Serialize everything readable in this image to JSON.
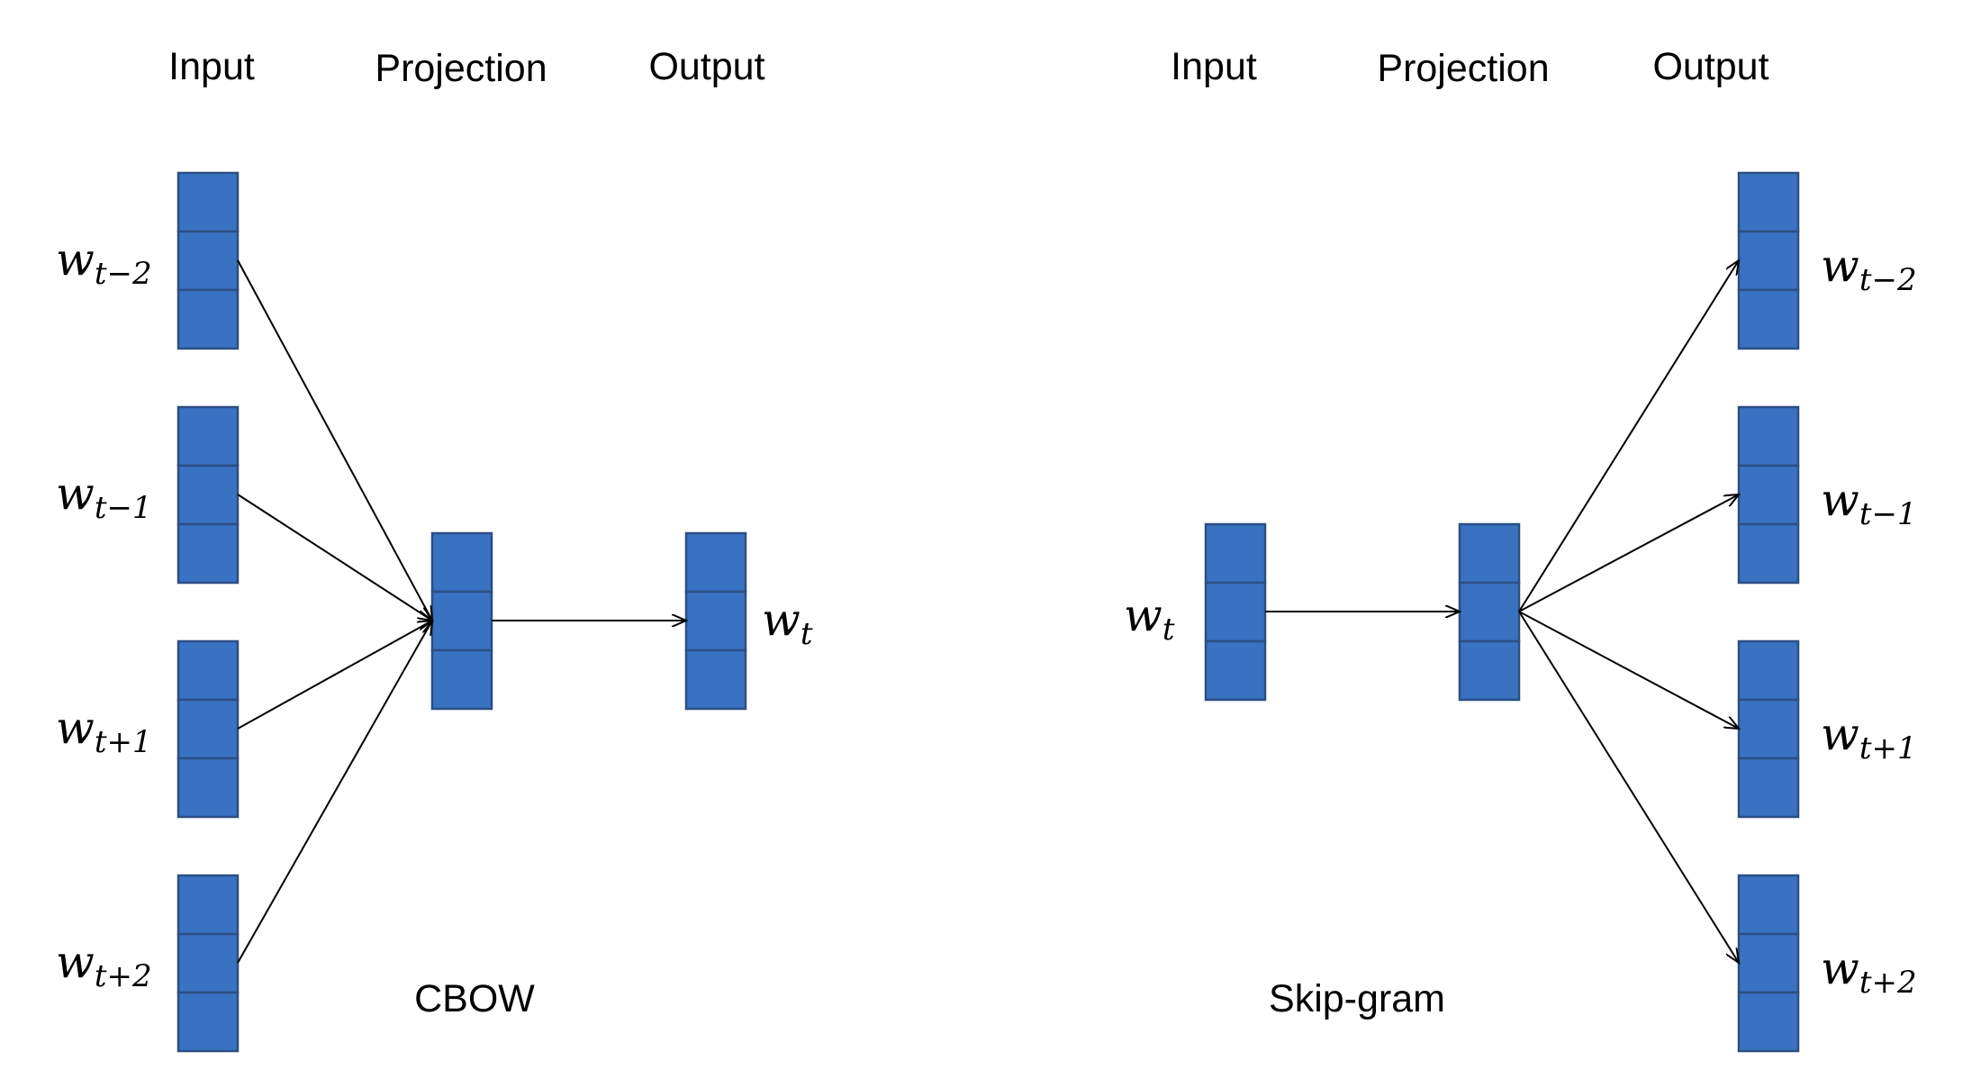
{
  "cbow": {
    "headers": {
      "input": "Input",
      "projection": "Projection",
      "output": "Output"
    },
    "caption": "CBOW",
    "input_words": [
      {
        "base": "w",
        "sub": "t−2"
      },
      {
        "base": "w",
        "sub": "t−1"
      },
      {
        "base": "w",
        "sub": "t+1"
      },
      {
        "base": "w",
        "sub": "t+2"
      }
    ],
    "output_word": {
      "base": "w",
      "sub": "t"
    }
  },
  "skipgram": {
    "headers": {
      "input": "Input",
      "projection": "Projection",
      "output": "Output"
    },
    "caption": "Skip-gram",
    "input_word": {
      "base": "w",
      "sub": "t"
    },
    "output_words": [
      {
        "base": "w",
        "sub": "t−2"
      },
      {
        "base": "w",
        "sub": "t−1"
      },
      {
        "base": "w",
        "sub": "t+1"
      },
      {
        "base": "w",
        "sub": "t+2"
      }
    ]
  },
  "colors": {
    "cell_fill": "#3a72c2",
    "cell_stroke": "#2b4f86",
    "arrow": "#000000"
  }
}
